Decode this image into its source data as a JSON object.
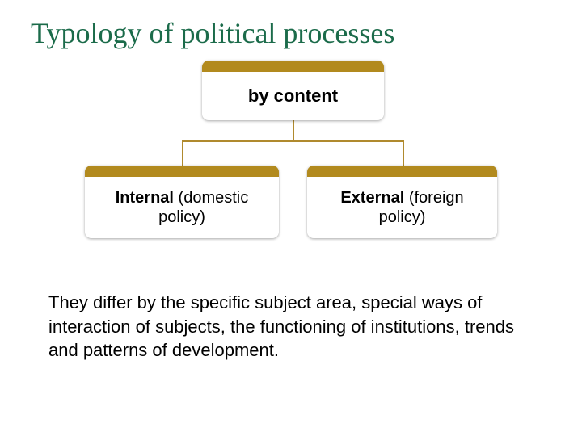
{
  "title": {
    "text": "Typology of political processes",
    "color": "#1b6b4a",
    "fontsize": 36
  },
  "diagram": {
    "type": "tree",
    "accent_color": "#b28a1e",
    "node_bg": "#ffffff",
    "node_shadow": "0 1px 3px rgba(0,0,0,0.35)",
    "connector_color": "#b08a2e",
    "top": {
      "label": "by content",
      "bold": true
    },
    "left": {
      "label_bold": "Internal",
      "label_rest": " (domestic policy)"
    },
    "right": {
      "label_bold": "External",
      "label_rest": " (foreign policy)"
    }
  },
  "description": {
    "text": "They differ by the specific subject area, special ways of interaction of subjects, the functioning of institutions, trends and patterns of development.",
    "fontsize": 22,
    "color": "#000000"
  }
}
